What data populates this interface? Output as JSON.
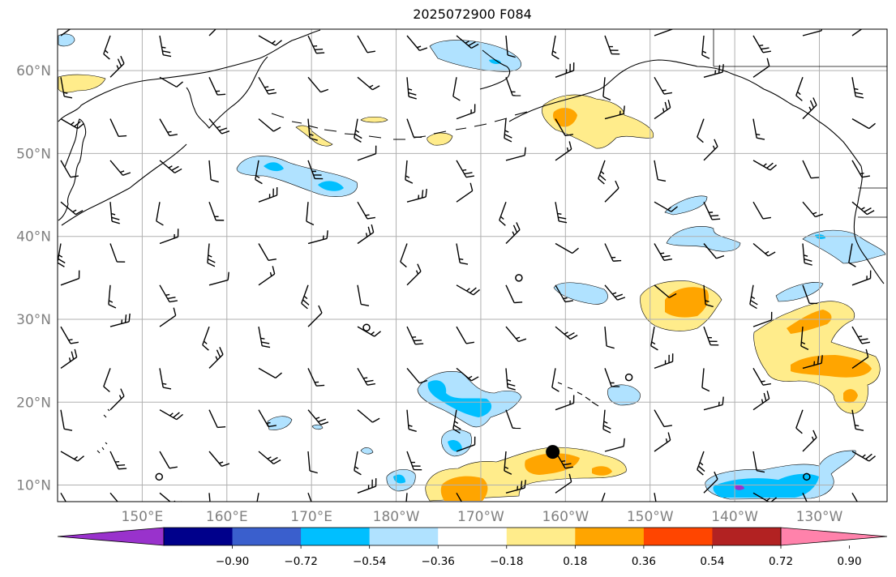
{
  "title": "2025072900 F084",
  "map": {
    "projection": "equirectangular",
    "lon_range": [
      140,
      238
    ],
    "lat_range": [
      8,
      65
    ],
    "lat_ticks": [
      "10°N",
      "20°N",
      "30°N",
      "40°N",
      "50°N",
      "60°N"
    ],
    "lon_ticks": [
      "150°E",
      "160°E",
      "170°E",
      "180°W",
      "170°W",
      "160°W",
      "150°W",
      "140°W",
      "130°W"
    ],
    "gridline_color": "#b0b0b0",
    "tick_label_color": "#808080",
    "coastline_color": "#000000",
    "markers": [
      {
        "kind": "filled-circle",
        "lon": 198.5,
        "lat": 14
      },
      {
        "kind": "open-circle",
        "lon": 194.5,
        "lat": 35
      },
      {
        "kind": "open-circle",
        "lon": 176.5,
        "lat": 29
      },
      {
        "kind": "open-circle",
        "lon": 207.5,
        "lat": 23
      },
      {
        "kind": "open-circle",
        "lon": 152,
        "lat": 11
      },
      {
        "kind": "open-circle",
        "lon": 228.5,
        "lat": 11
      }
    ]
  },
  "colorbar": {
    "ticks": [
      "−0.90",
      "−0.72",
      "−0.54",
      "−0.36",
      "−0.18",
      "0.18",
      "0.36",
      "0.54",
      "0.72",
      "0.90"
    ],
    "colors": [
      "#9932cc",
      "#00008b",
      "#3a5fcd",
      "#00bfff",
      "#b0e2ff",
      "#ffffff",
      "#ffec8b",
      "#ffa500",
      "#ff4500",
      "#b22222",
      "#ff82ab"
    ],
    "extend": "both"
  }
}
